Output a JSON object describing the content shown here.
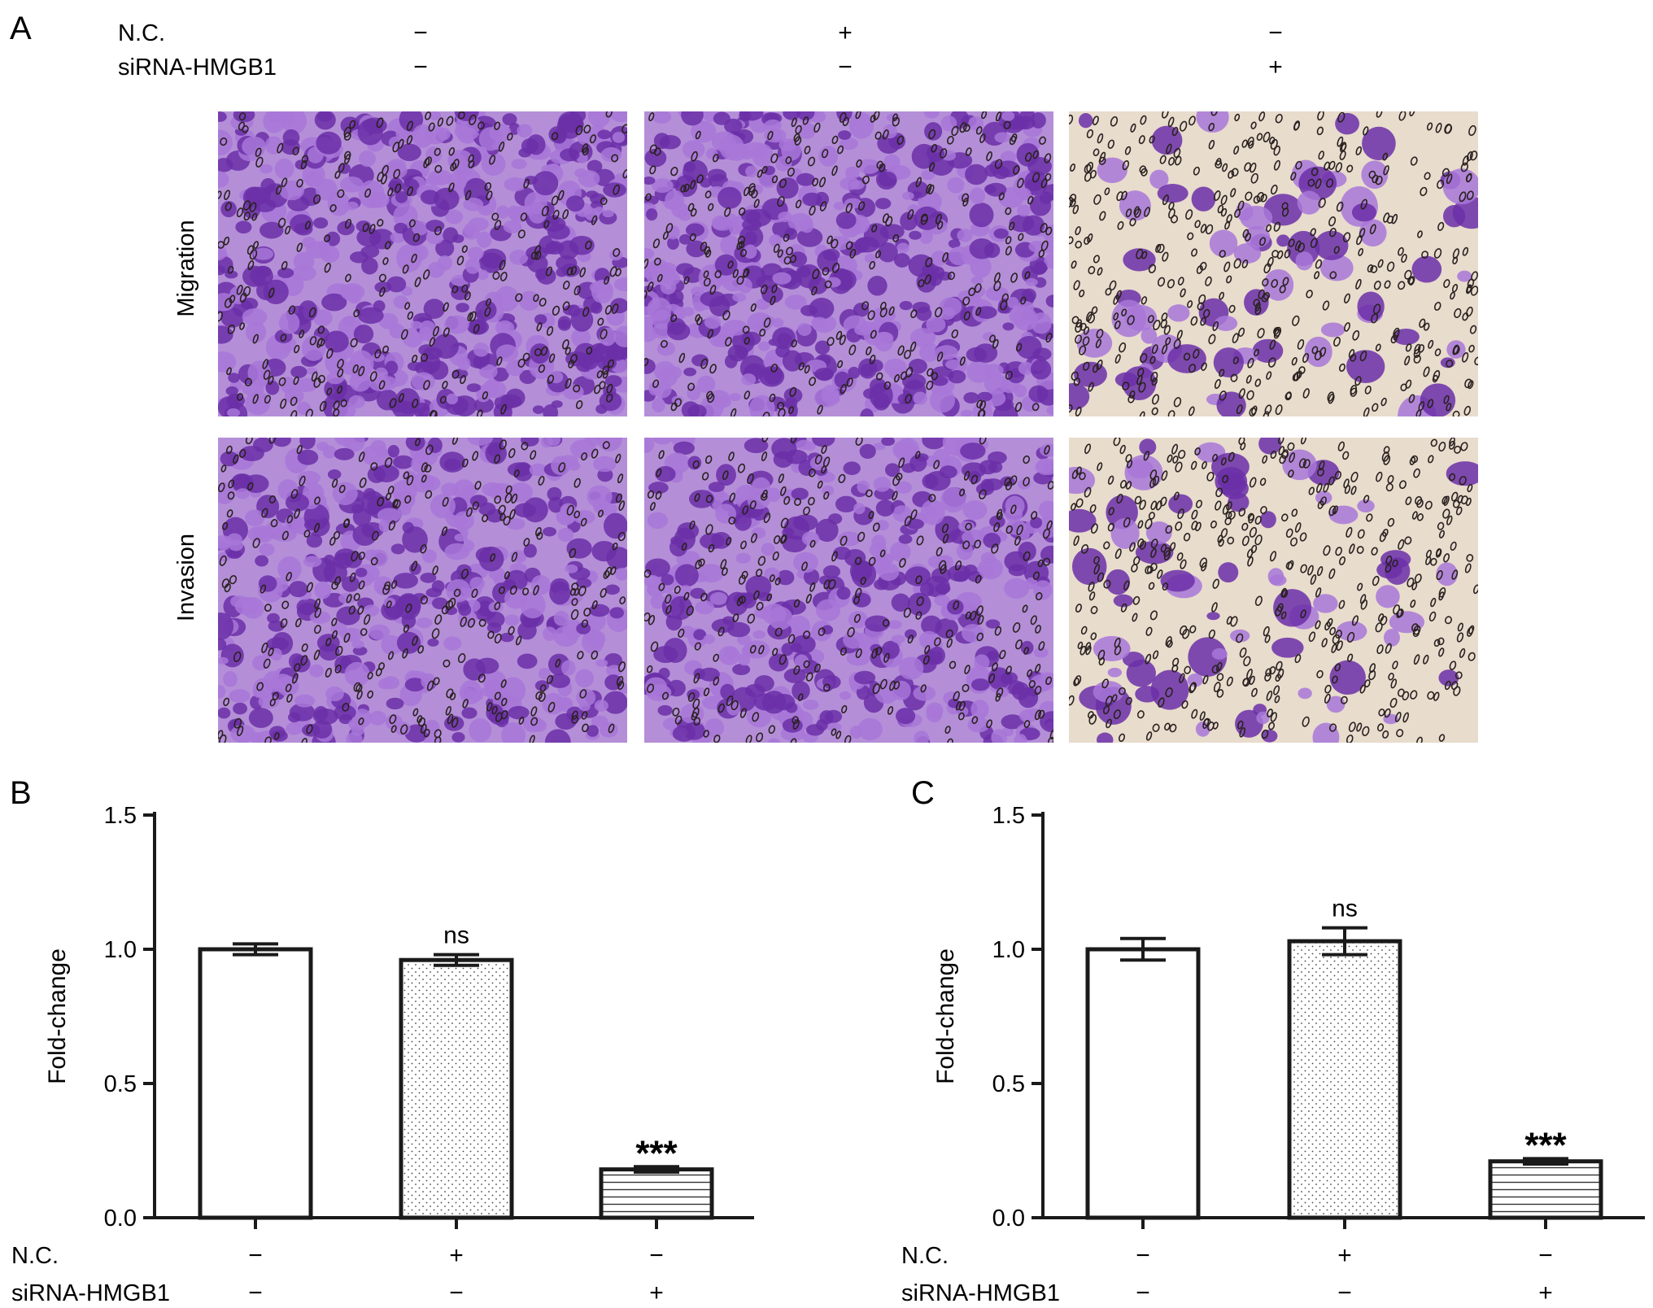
{
  "panel_a": {
    "letter": "A",
    "rows": [
      {
        "label": "N.C.",
        "signs": [
          "−",
          "+",
          "−"
        ]
      },
      {
        "label": "siRNA-HMGB1",
        "signs": [
          "−",
          "−",
          "+"
        ]
      }
    ],
    "row_labels": [
      "Migration",
      "Invasion"
    ],
    "image_density": [
      [
        1.0,
        1.0,
        0.22
      ],
      [
        0.85,
        0.85,
        0.22
      ]
    ]
  },
  "colors": {
    "stain_dark": "#6b2fa8",
    "stain_light": "#a877d8",
    "background_light": "#e8dccd",
    "pore": "#2a2220",
    "axis": "#1a1a1a"
  },
  "chart_data": [
    {
      "type": "bar",
      "panel_letter": "B",
      "ylabel": "Fold-change",
      "ylim": [
        0,
        1.5
      ],
      "yticks": [
        "0.0",
        "0.5",
        "1.0",
        "1.5"
      ],
      "values": [
        1.0,
        0.96,
        0.18
      ],
      "errors": [
        0.02,
        0.02,
        0.01
      ],
      "fills": [
        "white",
        "dots",
        "hlines"
      ],
      "annotations": [
        "",
        "ns",
        "***"
      ],
      "condition_rows": [
        {
          "label": "N.C.",
          "signs": [
            "−",
            "+",
            "−"
          ]
        },
        {
          "label": "siRNA-HMGB1",
          "signs": [
            "−",
            "−",
            "+"
          ]
        }
      ]
    },
    {
      "type": "bar",
      "panel_letter": "C",
      "ylabel": "Fold-change",
      "ylim": [
        0,
        1.5
      ],
      "yticks": [
        "0.0",
        "0.5",
        "1.0",
        "1.5"
      ],
      "values": [
        1.0,
        1.03,
        0.21
      ],
      "errors": [
        0.04,
        0.05,
        0.01
      ],
      "fills": [
        "white",
        "dots",
        "hlines"
      ],
      "annotations": [
        "",
        "ns",
        "***"
      ],
      "condition_rows": [
        {
          "label": "N.C.",
          "signs": [
            "−",
            "+",
            "−"
          ]
        },
        {
          "label": "siRNA-HMGB1",
          "signs": [
            "−",
            "−",
            "+"
          ]
        }
      ]
    }
  ]
}
